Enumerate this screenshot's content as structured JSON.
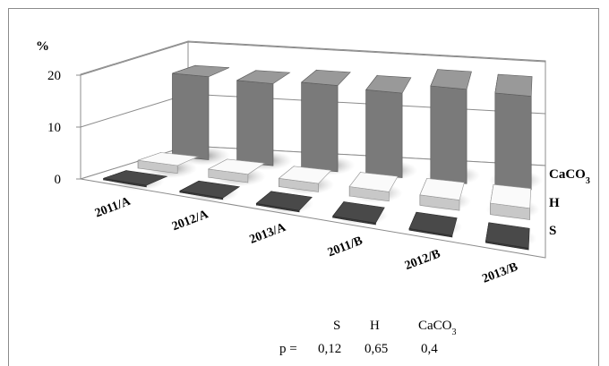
{
  "chart_data": {
    "type": "bar",
    "title": "",
    "ylabel": "%",
    "ylim": [
      0,
      20
    ],
    "yticks": [
      "0",
      "10",
      "20"
    ],
    "categories": [
      "2011/A",
      "2012/A",
      "2013/A",
      "2011/B",
      "2012/B",
      "2013/B"
    ],
    "depth_categories": [
      "S",
      "H",
      "CaCO3"
    ],
    "series": [
      {
        "name": "S",
        "values": [
          0.3,
          0.3,
          0.3,
          0.3,
          0.3,
          0.3
        ],
        "color": "#3a3a3a"
      },
      {
        "name": "H",
        "values": [
          1.5,
          1.6,
          1.6,
          1.8,
          2.0,
          2.2
        ],
        "color": "#c8c8c8"
      },
      {
        "name": "CaCO3",
        "values": [
          16.0,
          15.8,
          16.6,
          16.3,
          18.2,
          18.0
        ],
        "color": "#7a7a7a"
      }
    ],
    "depth_labels": [
      {
        "base": "CaCO",
        "sub": "3"
      },
      {
        "base": "H",
        "sub": ""
      },
      {
        "base": "S",
        "sub": ""
      }
    ],
    "annotation": {
      "p_label": "p =",
      "series_labels": [
        {
          "base": "S",
          "sub": ""
        },
        {
          "base": "H",
          "sub": ""
        },
        {
          "base": "CaCO",
          "sub": "3"
        }
      ],
      "p_values": [
        "0,12",
        "0,65",
        "0,4"
      ]
    },
    "grid": true
  }
}
